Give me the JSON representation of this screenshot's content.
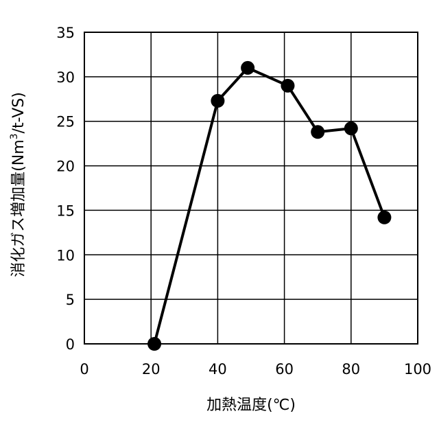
{
  "chart_data": {
    "type": "line",
    "title": "",
    "xlabel": "加熱温度(℃)",
    "ylabel_main": "消化ガス増加量(Nm",
    "ylabel_sup": "3",
    "ylabel_end": "/t-VS)",
    "xlim": [
      0,
      100
    ],
    "ylim": [
      0,
      35
    ],
    "xticks": [
      0,
      20,
      40,
      60,
      80,
      100
    ],
    "yticks": [
      0,
      5,
      10,
      15,
      20,
      25,
      30,
      35
    ],
    "grid": true,
    "legend": "none",
    "series": [
      {
        "marker": "circle",
        "color": "#000000",
        "points": [
          {
            "x": 21,
            "y": 0
          },
          {
            "x": 40,
            "y": 27.3
          },
          {
            "x": 49,
            "y": 31
          },
          {
            "x": 61,
            "y": 29
          },
          {
            "x": 70,
            "y": 23.8
          },
          {
            "x": 80,
            "y": 24.2
          },
          {
            "x": 90,
            "y": 14.2
          }
        ]
      }
    ]
  }
}
